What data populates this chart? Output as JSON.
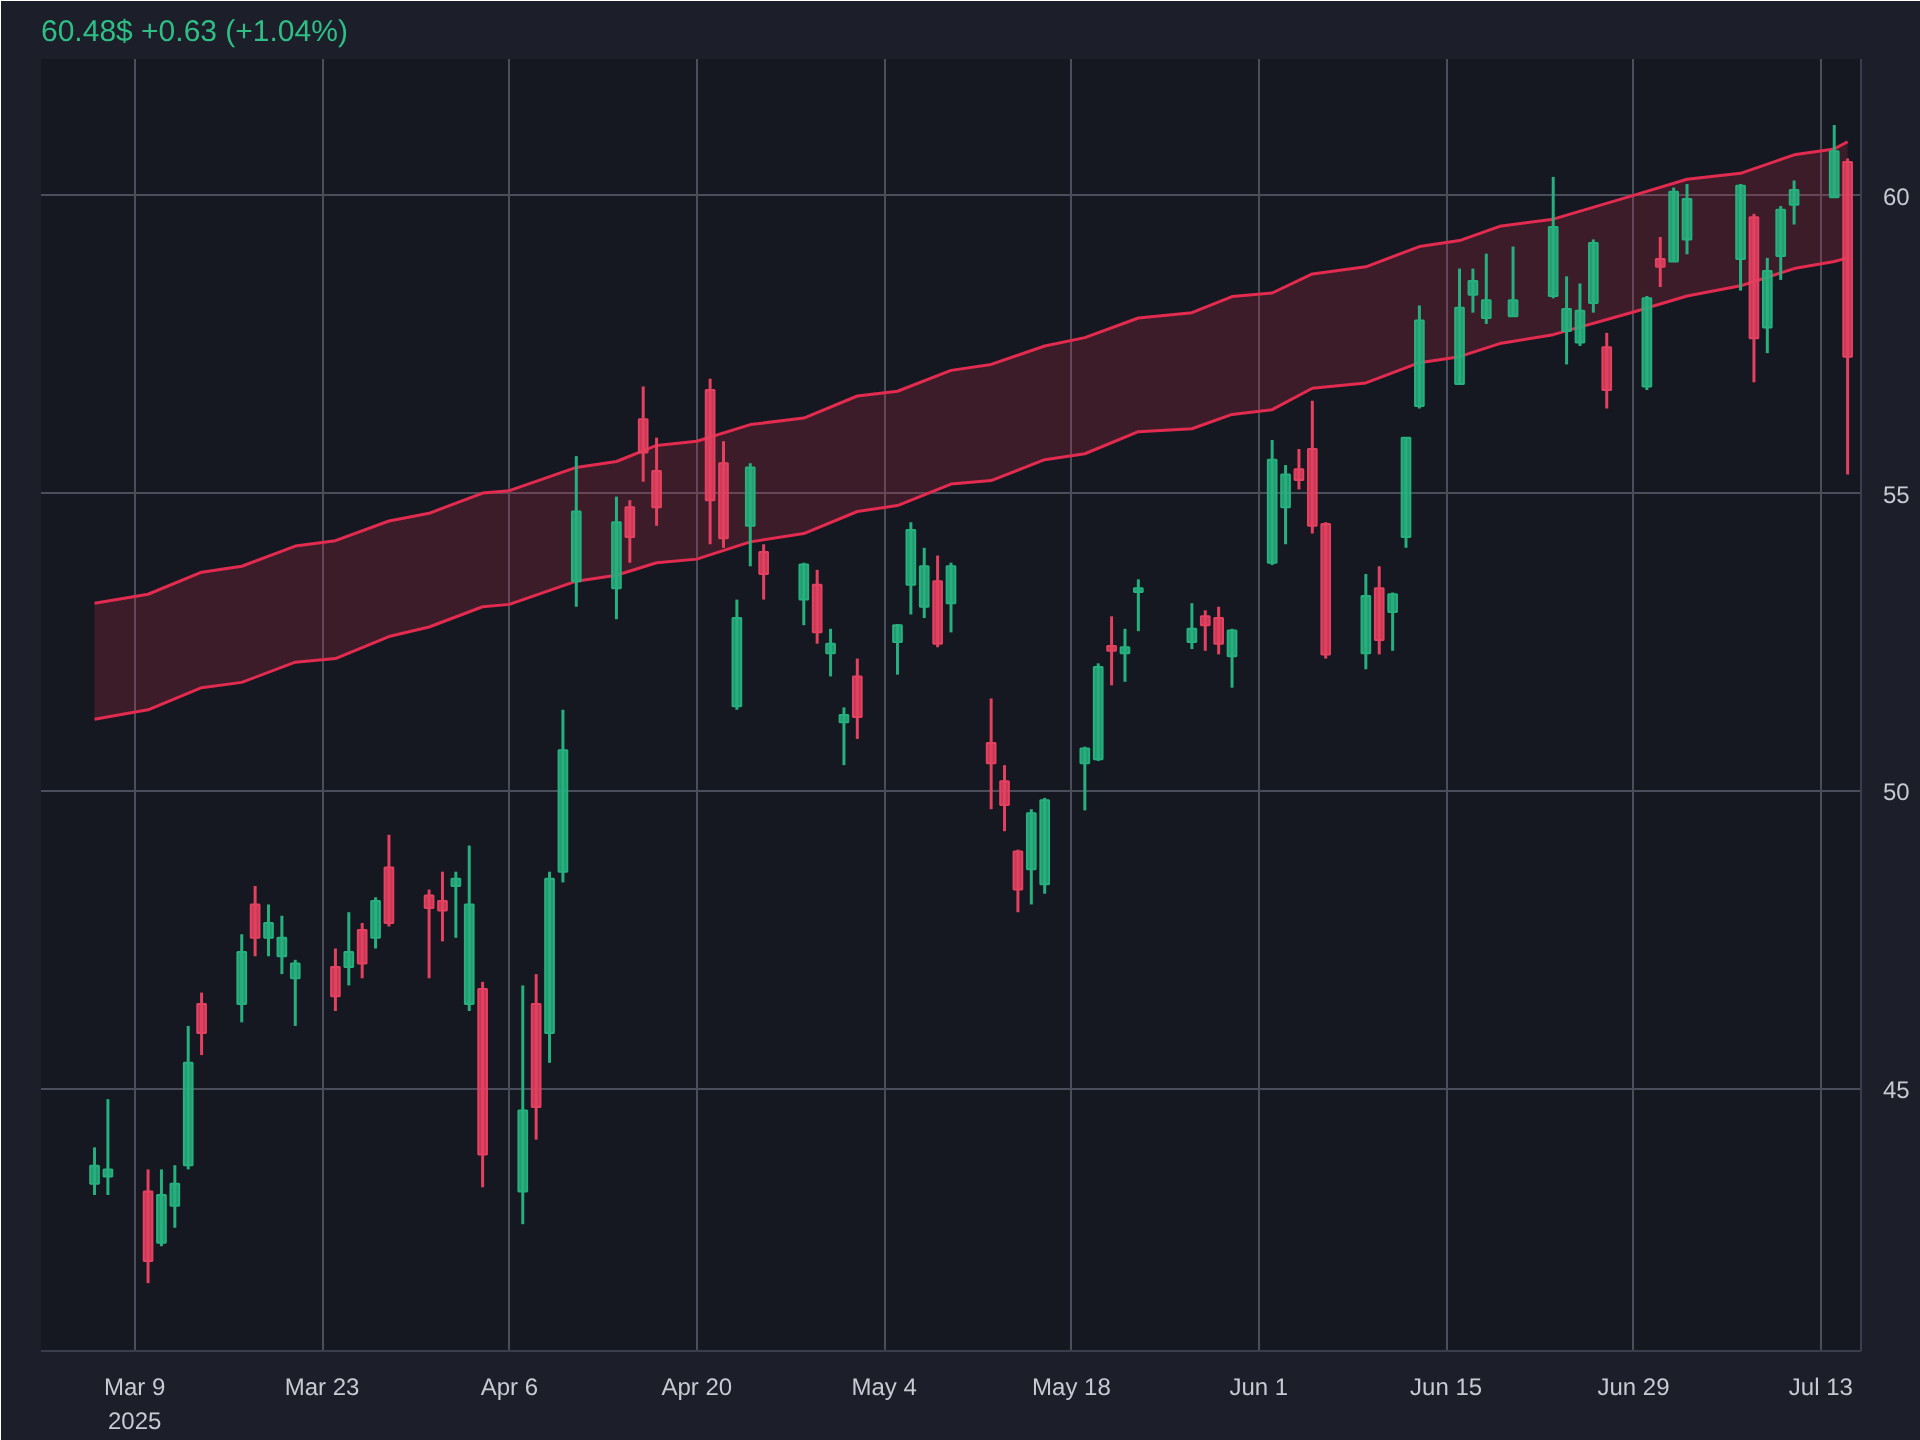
{
  "chart_data": {
    "type": "candlestick",
    "title": "60.48$ +0.63 (+1.04%)",
    "x": [
      "2025-03-06",
      "2025-03-07",
      "2025-03-10",
      "2025-03-11",
      "2025-03-12",
      "2025-03-13",
      "2025-03-14",
      "2025-03-17",
      "2025-03-18",
      "2025-03-19",
      "2025-03-20",
      "2025-03-21",
      "2025-03-24",
      "2025-03-25",
      "2025-03-26",
      "2025-03-27",
      "2025-03-28",
      "2025-03-31",
      "2025-04-01",
      "2025-04-02",
      "2025-04-03",
      "2025-04-04",
      "2025-04-07",
      "2025-04-08",
      "2025-04-09",
      "2025-04-10",
      "2025-04-11",
      "2025-04-14",
      "2025-04-15",
      "2025-04-16",
      "2025-04-17",
      "2025-04-21",
      "2025-04-22",
      "2025-04-23",
      "2025-04-24",
      "2025-04-25",
      "2025-04-28",
      "2025-04-29",
      "2025-04-30",
      "2025-05-01",
      "2025-05-02",
      "2025-05-05",
      "2025-05-06",
      "2025-05-07",
      "2025-05-08",
      "2025-05-09",
      "2025-05-12",
      "2025-05-13",
      "2025-05-14",
      "2025-05-15",
      "2025-05-16",
      "2025-05-19",
      "2025-05-20",
      "2025-05-21",
      "2025-05-22",
      "2025-05-23",
      "2025-05-27",
      "2025-05-28",
      "2025-05-29",
      "2025-05-30",
      "2025-06-02",
      "2025-06-03",
      "2025-06-04",
      "2025-06-05",
      "2025-06-06",
      "2025-06-09",
      "2025-06-10",
      "2025-06-11",
      "2025-06-12",
      "2025-06-13",
      "2025-06-16",
      "2025-06-17",
      "2025-06-18",
      "2025-06-20",
      "2025-06-23",
      "2025-06-24",
      "2025-06-25",
      "2025-06-26",
      "2025-06-27",
      "2025-06-30",
      "2025-07-01",
      "2025-07-02",
      "2025-07-03",
      "2025-07-07",
      "2025-07-08",
      "2025-07-09",
      "2025-07-10",
      "2025-07-11",
      "2025-07-14",
      "2025-07-15"
    ],
    "ohlc": [
      [
        43.41,
        44.02,
        43.22,
        43.71
      ],
      [
        43.53,
        44.83,
        43.22,
        43.65
      ],
      [
        43.28,
        43.65,
        41.74,
        42.11
      ],
      [
        42.42,
        43.65,
        42.36,
        43.22
      ],
      [
        43.04,
        43.72,
        42.67,
        43.41
      ],
      [
        43.72,
        46.06,
        43.65,
        45.44
      ],
      [
        46.43,
        46.62,
        45.57,
        45.94
      ],
      [
        46.43,
        47.6,
        46.12,
        47.3
      ],
      [
        48.1,
        48.41,
        47.23,
        47.54
      ],
      [
        47.54,
        48.1,
        47.23,
        47.79
      ],
      [
        47.23,
        47.91,
        46.93,
        47.54
      ],
      [
        46.86,
        47.17,
        46.06,
        47.11
      ],
      [
        47.05,
        47.36,
        46.31,
        46.56
      ],
      [
        47.05,
        47.97,
        46.74,
        47.3
      ],
      [
        47.67,
        47.79,
        46.86,
        47.11
      ],
      [
        47.54,
        48.22,
        47.36,
        48.16
      ],
      [
        48.72,
        49.27,
        47.73,
        47.79
      ],
      [
        48.25,
        48.35,
        46.86,
        48.04
      ],
      [
        48.16,
        48.65,
        47.48,
        48.0
      ],
      [
        48.41,
        48.65,
        47.54,
        48.53
      ],
      [
        46.43,
        49.09,
        46.31,
        48.1
      ],
      [
        46.68,
        46.8,
        43.35,
        43.9
      ],
      [
        43.28,
        46.74,
        42.73,
        44.64
      ],
      [
        46.43,
        46.93,
        44.15,
        44.7
      ],
      [
        45.94,
        48.65,
        45.44,
        48.53
      ],
      [
        48.65,
        51.37,
        48.47,
        50.69
      ],
      [
        53.53,
        55.63,
        53.1,
        54.7
      ],
      [
        53.41,
        54.95,
        52.89,
        54.52
      ],
      [
        54.77,
        54.89,
        53.84,
        54.27
      ],
      [
        56.25,
        56.8,
        55.2,
        55.69
      ],
      [
        55.38,
        55.94,
        54.46,
        54.77
      ],
      [
        56.74,
        56.93,
        54.15,
        54.89
      ],
      [
        55.51,
        55.88,
        54.09,
        54.25
      ],
      [
        51.43,
        53.22,
        51.37,
        52.91
      ],
      [
        54.46,
        55.51,
        53.78,
        55.44
      ],
      [
        54.02,
        54.15,
        53.22,
        53.65
      ],
      [
        53.22,
        53.84,
        52.79,
        53.81
      ],
      [
        53.47,
        53.72,
        52.48,
        52.67
      ],
      [
        52.32,
        52.73,
        51.93,
        52.48
      ],
      [
        51.16,
        51.41,
        50.44,
        51.28
      ],
      [
        51.93,
        52.23,
        50.88,
        51.25
      ],
      [
        52.51,
        52.81,
        51.96,
        52.79
      ],
      [
        53.47,
        54.52,
        52.97,
        54.39
      ],
      [
        53.1,
        54.09,
        52.91,
        53.78
      ],
      [
        53.53,
        53.96,
        52.42,
        52.48
      ],
      [
        53.16,
        53.84,
        52.67,
        53.78
      ],
      [
        50.81,
        51.56,
        49.7,
        50.47
      ],
      [
        50.17,
        50.44,
        49.33,
        49.77
      ],
      [
        48.99,
        49.02,
        47.97,
        48.35
      ],
      [
        48.69,
        49.7,
        48.1,
        49.63
      ],
      [
        48.44,
        49.89,
        48.28,
        49.85
      ],
      [
        50.47,
        50.75,
        49.68,
        50.72
      ],
      [
        50.54,
        52.15,
        50.51,
        52.09
      ],
      [
        52.44,
        52.94,
        51.78,
        52.36
      ],
      [
        52.32,
        52.73,
        51.84,
        52.42
      ],
      [
        53.35,
        53.56,
        52.69,
        53.41
      ],
      [
        52.51,
        53.16,
        52.39,
        52.73
      ],
      [
        52.94,
        53.04,
        52.36,
        52.79
      ],
      [
        52.91,
        53.1,
        52.3,
        52.48
      ],
      [
        52.27,
        52.73,
        51.74,
        52.7
      ],
      [
        53.84,
        55.9,
        53.8,
        55.57
      ],
      [
        54.77,
        55.48,
        54.15,
        55.32
      ],
      [
        55.41,
        55.75,
        55.07,
        55.23
      ],
      [
        55.75,
        56.56,
        54.33,
        54.46
      ],
      [
        54.49,
        54.52,
        52.23,
        52.3
      ],
      [
        52.32,
        53.65,
        52.05,
        53.28
      ],
      [
        53.41,
        53.78,
        52.3,
        52.54
      ],
      [
        53.01,
        53.34,
        52.36,
        53.31
      ],
      [
        54.27,
        55.94,
        54.09,
        55.94
      ],
      [
        56.47,
        58.16,
        56.43,
        57.91
      ],
      [
        56.84,
        58.78,
        56.84,
        58.12
      ],
      [
        58.34,
        58.78,
        58.04,
        58.57
      ],
      [
        57.95,
        59.03,
        57.85,
        58.25
      ],
      [
        57.98,
        59.15,
        57.98,
        58.25
      ],
      [
        58.32,
        60.32,
        58.28,
        59.48
      ],
      [
        57.73,
        58.65,
        57.17,
        58.1
      ],
      [
        57.54,
        58.53,
        57.48,
        58.07
      ],
      [
        58.2,
        59.27,
        58.04,
        59.21
      ],
      [
        57.46,
        57.7,
        56.43,
        56.74
      ],
      [
        56.8,
        58.32,
        56.74,
        58.28
      ],
      [
        58.94,
        59.31,
        58.47,
        58.81
      ],
      [
        58.9,
        60.14,
        58.9,
        60.07
      ],
      [
        59.27,
        60.2,
        59.02,
        59.95
      ],
      [
        58.94,
        60.2,
        58.41,
        60.17
      ],
      [
        59.64,
        59.7,
        56.87,
        57.61
      ],
      [
        57.79,
        58.96,
        57.36,
        58.74
      ],
      [
        58.99,
        59.83,
        58.59,
        59.77
      ],
      [
        59.85,
        60.26,
        59.52,
        60.1
      ],
      [
        59.98,
        61.19,
        59.98,
        60.75
      ],
      [
        60.57,
        60.63,
        55.32,
        57.3
      ]
    ],
    "colors": [
      "#26b07e",
      "#26b07e",
      "#e4405f",
      "#26b07e",
      "#26b07e",
      "#26b07e",
      "#e4405f",
      "#26b07e",
      "#e4405f",
      "#26b07e",
      "#26b07e",
      "#26b07e",
      "#e4405f",
      "#26b07e",
      "#e4405f",
      "#26b07e",
      "#e4405f",
      "#e4405f",
      "#e4405f",
      "#26b07e",
      "#26b07e",
      "#e4405f",
      "#26b07e",
      "#e4405f",
      "#26b07e",
      "#26b07e",
      "#26b07e",
      "#26b07e",
      "#e4405f",
      "#e4405f",
      "#e4405f",
      "#e4405f",
      "#e4405f",
      "#26b07e",
      "#26b07e",
      "#e4405f",
      "#26b07e",
      "#e4405f",
      "#26b07e",
      "#26b07e",
      "#e4405f",
      "#26b07e",
      "#26b07e",
      "#26b07e",
      "#e4405f",
      "#26b07e",
      "#e4405f",
      "#e4405f",
      "#e4405f",
      "#26b07e",
      "#26b07e",
      "#26b07e",
      "#26b07e",
      "#e4405f",
      "#26b07e",
      "#26b07e",
      "#26b07e",
      "#e4405f",
      "#e4405f",
      "#26b07e",
      "#26b07e",
      "#26b07e",
      "#e4405f",
      "#e4405f",
      "#e4405f",
      "#26b07e",
      "#e4405f",
      "#26b07e",
      "#26b07e",
      "#26b07e",
      "#26b07e",
      "#26b07e",
      "#26b07e",
      "#26b07e",
      "#26b07e",
      "#26b07e",
      "#26b07e",
      "#26b07e",
      "#e4405f",
      "#26b07e",
      "#e4405f",
      "#26b07e",
      "#26b07e",
      "#26b07e",
      "#e4405f",
      "#26b07e",
      "#26b07e",
      "#26b07e",
      "#26b07e",
      "#e4405f"
    ],
    "series": [
      {
        "type": "line",
        "color": "#e32b4f",
        "x": [
          "2025-03-06",
          "2025-03-10",
          "2025-03-14",
          "2025-03-17",
          "2025-03-21",
          "2025-03-24",
          "2025-03-28",
          "2025-03-31",
          "2025-04-04",
          "2025-04-06",
          "2025-04-11",
          "2025-04-14",
          "2025-04-17",
          "2025-04-20",
          "2025-04-24",
          "2025-04-28",
          "2025-05-02",
          "2025-05-05",
          "2025-05-09",
          "2025-05-12",
          "2025-05-16",
          "2025-05-19",
          "2025-05-23",
          "2025-05-27",
          "2025-05-30",
          "2025-06-02",
          "2025-06-05",
          "2025-06-09",
          "2025-06-13",
          "2025-06-16",
          "2025-06-19",
          "2025-06-23",
          "2025-06-29",
          "2025-07-03",
          "2025-07-07",
          "2025-07-11",
          "2025-07-14",
          "2025-07-15"
        ],
        "values": [
          53.16,
          53.31,
          53.68,
          53.78,
          54.12,
          54.21,
          54.54,
          54.67,
          55.01,
          55.05,
          55.44,
          55.54,
          55.81,
          55.88,
          56.16,
          56.27,
          56.64,
          56.72,
          57.07,
          57.17,
          57.48,
          57.62,
          57.95,
          58.04,
          58.31,
          58.37,
          58.69,
          58.81,
          59.15,
          59.25,
          59.49,
          59.61,
          60.01,
          60.28,
          60.38,
          60.69,
          60.79,
          60.91
        ],
        "upper": [
          53.16,
          53.31,
          53.68,
          53.78,
          54.12,
          54.21,
          54.54,
          54.67,
          55.01,
          55.05,
          55.44,
          55.54,
          55.81,
          55.88,
          56.16,
          56.27,
          56.64,
          56.72,
          57.07,
          57.17,
          57.48,
          57.62,
          57.95,
          58.04,
          58.31,
          58.37,
          58.69,
          58.81,
          59.15,
          59.25,
          59.49,
          59.61,
          60.01,
          60.28,
          60.38,
          60.69,
          60.79,
          60.91
        ],
        "lower": [
          51.21,
          51.37,
          51.74,
          51.83,
          52.17,
          52.23,
          52.6,
          52.76,
          53.1,
          53.14,
          53.53,
          53.63,
          53.84,
          53.9,
          54.19,
          54.33,
          54.7,
          54.8,
          55.16,
          55.22,
          55.57,
          55.67,
          56.04,
          56.09,
          56.33,
          56.41,
          56.77,
          56.86,
          57.2,
          57.3,
          57.52,
          57.67,
          58.05,
          58.32,
          58.49,
          58.78,
          58.9,
          58.96
        ]
      },
      {
        "type": "line",
        "color": "#e32b4f",
        "x": [
          "2025-03-06",
          "2025-03-10",
          "2025-03-14",
          "2025-03-17",
          "2025-03-21",
          "2025-03-24",
          "2025-03-28",
          "2025-03-31",
          "2025-04-04",
          "2025-04-06",
          "2025-04-11",
          "2025-04-14",
          "2025-04-17",
          "2025-04-20",
          "2025-04-24",
          "2025-04-28",
          "2025-05-02",
          "2025-05-05",
          "2025-05-09",
          "2025-05-12",
          "2025-05-16",
          "2025-05-19",
          "2025-05-23",
          "2025-05-27",
          "2025-05-30",
          "2025-06-02",
          "2025-06-05",
          "2025-06-09",
          "2025-06-13",
          "2025-06-16",
          "2025-06-19",
          "2025-06-23",
          "2025-06-29",
          "2025-07-03",
          "2025-07-07",
          "2025-07-11",
          "2025-07-14",
          "2025-07-15"
        ],
        "values": [
          51.21,
          51.37,
          51.74,
          51.83,
          52.17,
          52.23,
          52.6,
          52.76,
          53.1,
          53.14,
          53.53,
          53.63,
          53.84,
          53.9,
          54.19,
          54.33,
          54.7,
          54.8,
          55.16,
          55.22,
          55.57,
          55.67,
          56.04,
          56.09,
          56.33,
          56.41,
          56.77,
          56.86,
          57.2,
          57.3,
          57.52,
          57.67,
          58.05,
          58.32,
          58.49,
          58.78,
          58.9,
          58.96
        ]
      }
    ],
    "xlim": [
      "2025-03-02",
      "2025-07-16"
    ],
    "ylim": [
      40.6,
      62.3
    ],
    "xticks": [
      {
        "value": "2025-03-09",
        "label": "Mar 9\n2025"
      },
      {
        "value": "2025-03-23",
        "label": "Mar 23"
      },
      {
        "value": "2025-04-06",
        "label": "Apr 6"
      },
      {
        "value": "2025-04-20",
        "label": "Apr 20"
      },
      {
        "value": "2025-05-04",
        "label": "May 4"
      },
      {
        "value": "2025-05-18",
        "label": "May 18"
      },
      {
        "value": "2025-06-01",
        "label": "Jun 1"
      },
      {
        "value": "2025-06-15",
        "label": "Jun 15"
      },
      {
        "value": "2025-06-29",
        "label": "Jun 29"
      },
      {
        "value": "2025-07-13",
        "label": "Jul 13"
      }
    ],
    "yticks": [
      45,
      50,
      55,
      60
    ],
    "grid": true
  }
}
